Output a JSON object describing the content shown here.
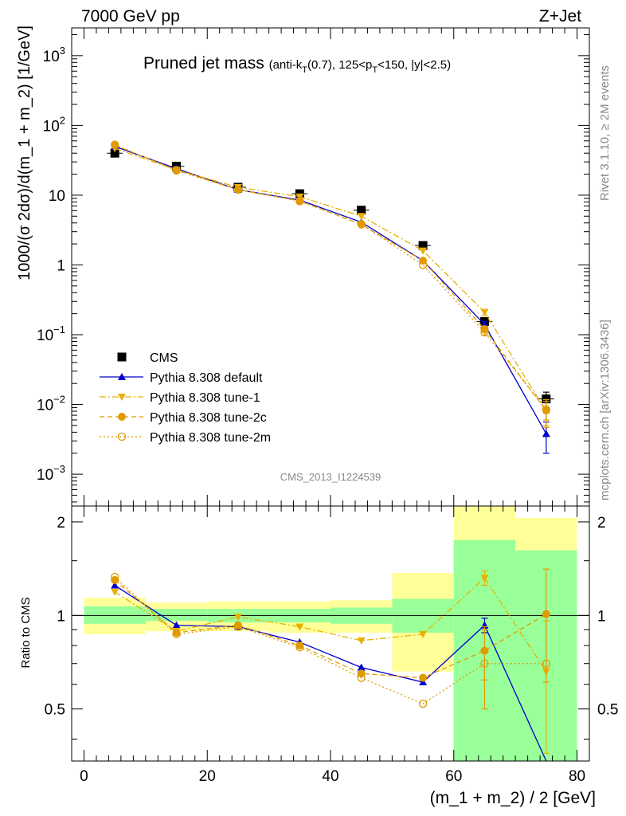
{
  "header": {
    "energy_label": "7000 GeV pp",
    "process_label": "Z+Jet"
  },
  "side_text": {
    "rivet": "Rivet 3.1.10, ≥ 2M events",
    "mcplots": "mcplots.cern.ch [arXiv:1306.3436]"
  },
  "chart_data": [
    {
      "type": "scatter",
      "title_main": "Pruned jet mass",
      "title_sub": "(anti-k_T(0.7), 125<p_T<150, |y|<2.5)",
      "analysis_label": "CMS_2013_I1224539",
      "ylabel": "1000/(σ 2dσ)/d(m_1 + m_2) [1/GeV]",
      "yscale": "log",
      "xlim": [
        -2,
        82
      ],
      "ylim": [
        0.00035,
        2500
      ],
      "yticks": [
        {
          "v": 0.001,
          "m": "10",
          "e": "−3"
        },
        {
          "v": 0.01,
          "m": "10",
          "e": "−2"
        },
        {
          "v": 0.1,
          "m": "10",
          "e": "−1"
        },
        {
          "v": 1,
          "m": "1",
          "e": ""
        },
        {
          "v": 10,
          "m": "10",
          "e": ""
        },
        {
          "v": 100,
          "m": "10",
          "e": "2"
        },
        {
          "v": 1000,
          "m": "10",
          "e": "3"
        }
      ],
      "legend_position": "bottom-left",
      "x": [
        5,
        15,
        25,
        35,
        45,
        55,
        65,
        75
      ],
      "series": [
        {
          "name": "CMS",
          "color": "#000000",
          "marker": "square",
          "line": "none",
          "values": [
            40,
            26,
            13,
            10.5,
            6.1,
            1.9,
            0.155,
            0.012
          ],
          "err": [
            2,
            1.3,
            0.7,
            0.5,
            0.35,
            0.12,
            0.015,
            0.003
          ]
        },
        {
          "name": "Pythia 8.308 default",
          "color": "#0000cc",
          "marker": "triangle-up",
          "line": "solid",
          "values": [
            50,
            24,
            12,
            8.5,
            4.1,
            1.15,
            0.14,
            0.0038
          ],
          "err": [
            0,
            0,
            0.8,
            0,
            0,
            0,
            0.015,
            0.0018
          ]
        },
        {
          "name": "Pythia 8.308 tune-1",
          "color": "#e8b000",
          "marker": "triangle-down",
          "line": "dashdot",
          "values": [
            47,
            23,
            13,
            9.5,
            5.0,
            1.6,
            0.21,
            0.008
          ],
          "err": [
            0,
            0,
            0,
            0,
            0,
            0,
            0.02,
            0.003
          ]
        },
        {
          "name": "Pythia 8.308 tune-2c",
          "color": "#e09a00",
          "marker": "circle",
          "line": "dashed",
          "values": [
            52,
            23,
            12,
            8.3,
            3.8,
            1.15,
            0.12,
            0.0082
          ],
          "err": [
            0,
            0,
            0,
            0,
            0,
            0,
            0.012,
            0.0035
          ]
        },
        {
          "name": "Pythia 8.308 tune-2m",
          "color": "#e09a00",
          "marker": "circle-open",
          "line": "dotted",
          "values": [
            53,
            22.5,
            12,
            8.2,
            3.85,
            1.0,
            0.108,
            0.0085
          ],
          "err": [
            0,
            0,
            0,
            0,
            0,
            0,
            0.01,
            0.0025
          ]
        }
      ]
    },
    {
      "type": "scatter",
      "ylabel": "Ratio to CMS",
      "xlabel": "(m_1 + m_2) / 2 [GeV]",
      "xlim": [
        -2,
        82
      ],
      "ylim": [
        0.34,
        2.25
      ],
      "xticks": [
        0,
        20,
        40,
        60,
        80
      ],
      "yticks": [
        0.5,
        1,
        2
      ],
      "reference_line": 1,
      "bands": {
        "edges": [
          0,
          10,
          20,
          30,
          40,
          50,
          60,
          70,
          80
        ],
        "green": [
          [
            0.94,
            1.07
          ],
          [
            0.96,
            1.05
          ],
          [
            0.95,
            1.05
          ],
          [
            0.95,
            1.05
          ],
          [
            0.94,
            1.06
          ],
          [
            0.88,
            1.13
          ],
          [
            0.34,
            1.75
          ],
          [
            0.34,
            1.62
          ]
        ],
        "yellow": [
          [
            0.87,
            1.14
          ],
          [
            0.89,
            1.1
          ],
          [
            0.89,
            1.11
          ],
          [
            0.88,
            1.11
          ],
          [
            0.88,
            1.12
          ],
          [
            0.66,
            1.37
          ],
          [
            0.34,
            2.25
          ],
          [
            0.44,
            2.06
          ]
        ],
        "green_color": "#99ff99",
        "yellow_color": "#ffff99"
      },
      "x": [
        5,
        15,
        25,
        35,
        45,
        55,
        65,
        75
      ],
      "series": [
        {
          "name": "Pythia 8.308 default",
          "color": "#0000cc",
          "marker": "triangle-up",
          "line": "solid",
          "values": [
            1.25,
            0.93,
            0.92,
            0.82,
            0.68,
            0.61,
            0.93,
            0.3
          ],
          "err": [
            0,
            0,
            0,
            0,
            0,
            0,
            0.05,
            0
          ]
        },
        {
          "name": "Pythia 8.308 tune-1",
          "color": "#e8b000",
          "marker": "triangle-down",
          "line": "dashdot",
          "values": [
            1.19,
            0.89,
            0.99,
            0.92,
            0.83,
            0.87,
            1.32,
            0.66
          ],
          "err": [
            0,
            0,
            0,
            0,
            0,
            0,
            0.07,
            0.3
          ]
        },
        {
          "name": "Pythia 8.308 tune-2c",
          "color": "#e09a00",
          "marker": "circle",
          "line": "dashed",
          "values": [
            1.3,
            0.88,
            0.93,
            0.8,
            0.65,
            0.63,
            0.77,
            1.01
          ],
          "err": [
            0,
            0,
            0,
            0,
            0,
            0,
            0.15,
            0.4
          ]
        },
        {
          "name": "Pythia 8.308 tune-2m",
          "color": "#e09a00",
          "marker": "circle-open",
          "line": "dotted",
          "values": [
            1.33,
            0.87,
            0.92,
            0.79,
            0.63,
            0.52,
            0.7,
            0.7
          ],
          "err": [
            0,
            0,
            0,
            0,
            0,
            0,
            0.2,
            0
          ]
        }
      ]
    }
  ]
}
